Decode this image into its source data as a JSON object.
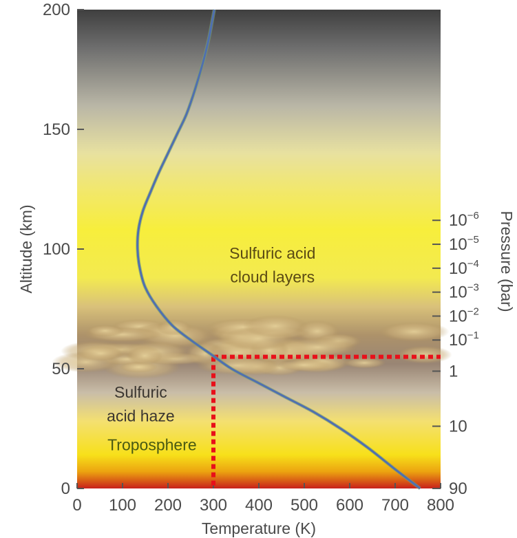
{
  "chart_data": {
    "type": "line",
    "xlabel": "Temperature (K)",
    "ylabel": "Altitude (km)",
    "y2label": "Pressure (bar)",
    "xlim": [
      0,
      800
    ],
    "ylim": [
      0,
      200
    ],
    "x_ticks": [
      0,
      100,
      200,
      300,
      400,
      500,
      600,
      700,
      800
    ],
    "y_ticks": [
      0,
      50,
      100,
      150,
      200
    ],
    "pressure_ticks": [
      {
        "label": "90",
        "exp": "",
        "altitude": 0
      },
      {
        "label": "10",
        "exp": "",
        "altitude": 26
      },
      {
        "label": "1",
        "exp": "",
        "altitude": 49
      },
      {
        "label": "10",
        "exp": "−1",
        "altitude": 62
      },
      {
        "label": "10",
        "exp": "−2",
        "altitude": 72
      },
      {
        "label": "10",
        "exp": "−3",
        "altitude": 82
      },
      {
        "label": "10",
        "exp": "−4",
        "altitude": 92
      },
      {
        "label": "10",
        "exp": "−5",
        "altitude": 102
      },
      {
        "label": "10",
        "exp": "−6",
        "altitude": 112
      }
    ],
    "series": [
      {
        "color": "#4f6fb0",
        "points": [
          [
            755,
            0
          ],
          [
            700,
            8
          ],
          [
            640,
            17
          ],
          [
            580,
            25
          ],
          [
            520,
            32
          ],
          [
            460,
            38
          ],
          [
            400,
            44
          ],
          [
            340,
            50
          ],
          [
            295,
            56
          ],
          [
            250,
            62
          ],
          [
            210,
            68
          ],
          [
            175,
            76
          ],
          [
            150,
            84
          ],
          [
            138,
            92
          ],
          [
            133,
            100
          ],
          [
            135,
            108
          ],
          [
            145,
            116
          ],
          [
            162,
            124
          ],
          [
            180,
            132
          ],
          [
            200,
            140
          ],
          [
            220,
            148
          ],
          [
            240,
            156
          ],
          [
            255,
            164
          ],
          [
            268,
            172
          ],
          [
            280,
            180
          ],
          [
            290,
            188
          ],
          [
            298,
            196
          ],
          [
            302,
            200
          ]
        ]
      }
    ],
    "guide_lines": {
      "color": "#e8101a",
      "temperature": 300,
      "altitude": 55
    },
    "annotations": [
      {
        "text": "Sulfuric acid",
        "x": 430,
        "y": 96
      },
      {
        "text": "cloud layers",
        "x": 430,
        "y": 86
      },
      {
        "text": "Sulfuric",
        "x": 140,
        "y": 38
      },
      {
        "text": "acid haze",
        "x": 140,
        "y": 28
      },
      {
        "text": "Troposphere",
        "x": 165,
        "y": 16
      }
    ]
  }
}
